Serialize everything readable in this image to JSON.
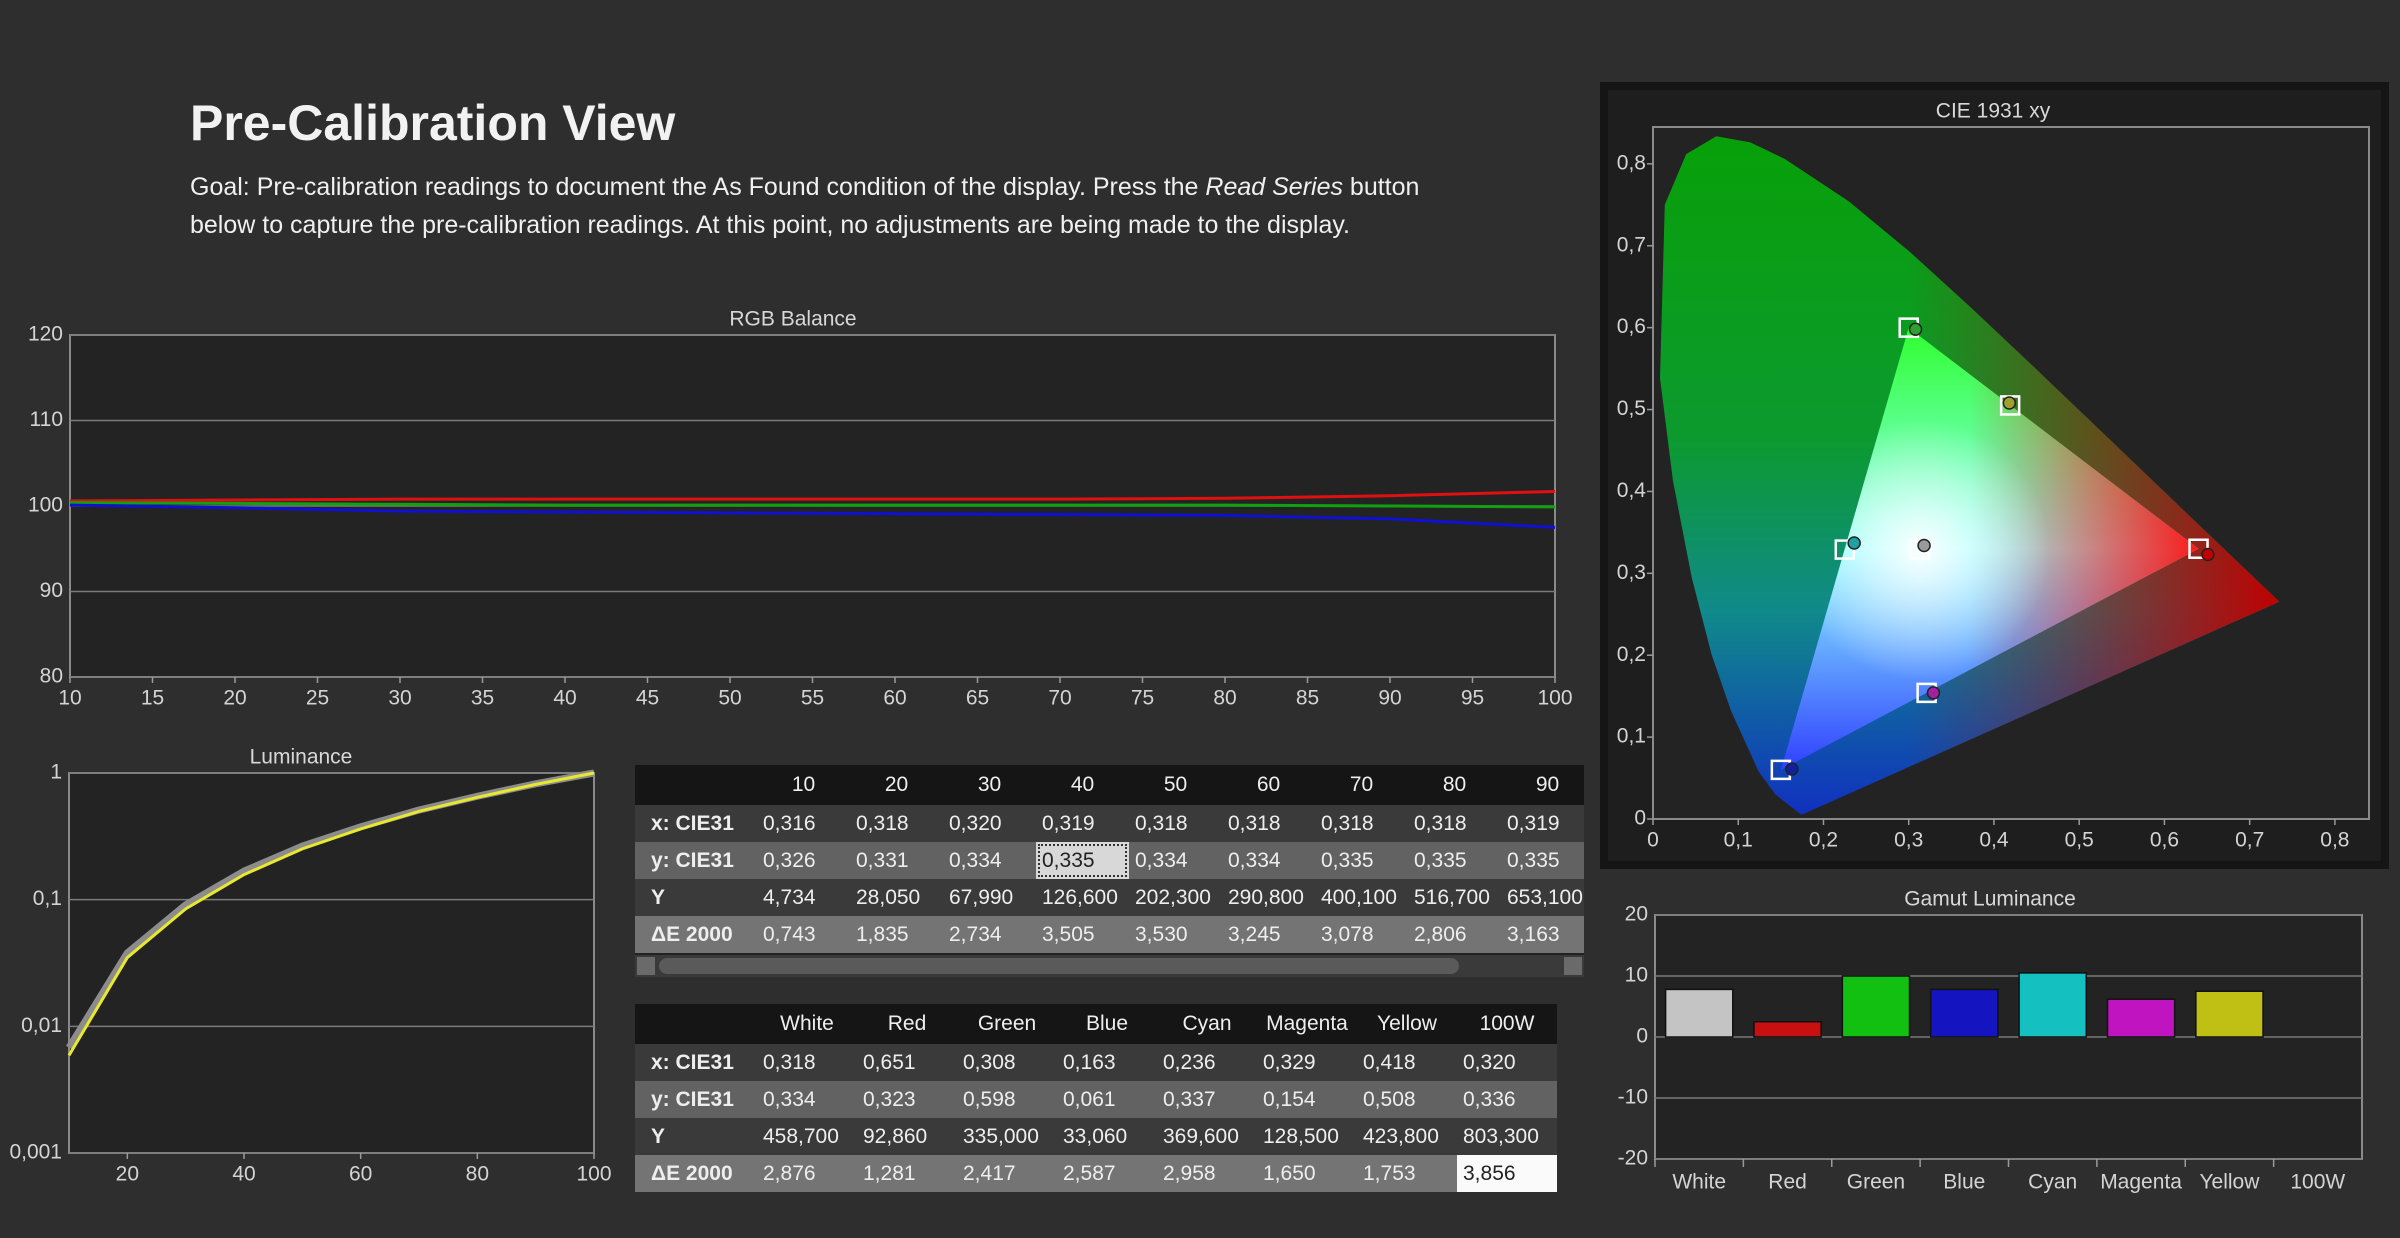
{
  "header": {
    "title": "Pre-Calibration View",
    "description": [
      "Goal: Pre-calibration readings to document the As Found condition of the display. Press the ",
      "Read Series",
      " button",
      "below to capture the pre-calibration readings. At this point, no adjustments are being made to the display."
    ]
  },
  "chart_data": [
    {
      "type": "line",
      "title": "RGB Balance",
      "x": [
        10,
        20,
        30,
        40,
        50,
        60,
        70,
        80,
        90,
        100
      ],
      "series": [
        {
          "color": "#e01010",
          "values": [
            100.6,
            100.7,
            100.8,
            100.8,
            100.8,
            100.8,
            100.8,
            100.9,
            101.2,
            101.7
          ]
        },
        {
          "color": "#10a010",
          "values": [
            100.4,
            100.3,
            100.2,
            100.1,
            100.1,
            100.1,
            100.1,
            100.1,
            100.0,
            99.9
          ]
        },
        {
          "color": "#1010d0",
          "values": [
            100.1,
            99.8,
            99.4,
            99.3,
            99.2,
            99.1,
            99.0,
            98.9,
            98.5,
            97.5
          ]
        }
      ],
      "xlim": [
        10,
        100
      ],
      "xticks": [
        10,
        15,
        20,
        25,
        30,
        35,
        40,
        45,
        50,
        55,
        60,
        65,
        70,
        75,
        80,
        85,
        90,
        95,
        100
      ],
      "ylim": [
        80,
        120
      ],
      "yticks": [
        80,
        90,
        100,
        110,
        120
      ],
      "grid": true
    },
    {
      "type": "line",
      "title": "Luminance",
      "x": [
        10,
        20,
        30,
        40,
        50,
        60,
        70,
        80,
        90,
        100
      ],
      "series": [
        {
          "color": "#8c8c8c",
          "values": [
            0.0068,
            0.038,
            0.091,
            0.168,
            0.265,
            0.376,
            0.51,
            0.655,
            0.822,
            1
          ]
        },
        {
          "color": "#e8e830",
          "values": [
            0.0059,
            0.0349,
            0.0846,
            0.1576,
            0.2518,
            0.362,
            0.498,
            0.643,
            0.813,
            1
          ]
        }
      ],
      "xlim": [
        10,
        100
      ],
      "xticks": [
        20,
        40,
        60,
        80,
        100
      ],
      "ylim": [
        0.001,
        1
      ],
      "yscale": "log",
      "yticks": [
        {
          "value": 0.001,
          "label": "0,001"
        },
        {
          "value": 0.01,
          "label": "0,01"
        },
        {
          "value": 0.1,
          "label": "0,1"
        },
        1
      ],
      "grid": true
    },
    {
      "type": "scatter",
      "title": "CIE 1931 xy",
      "series": [
        {
          "marker": "square",
          "color": "#ffffff",
          "x": [
            0.3127,
            0.64,
            0.3,
            0.15,
            0.225,
            0.321,
            0.419
          ],
          "values": [
            0.329,
            0.33,
            0.6,
            0.06,
            0.329,
            0.154,
            0.505
          ]
        },
        {
          "marker": "circle",
          "colors": [
            "#9a9a9a",
            "#c00000",
            "#30a030",
            "#1020a0",
            "#20a0a0",
            "#a020a0",
            "#a0a030"
          ],
          "x": [
            0.318,
            0.651,
            0.308,
            0.163,
            0.236,
            0.329,
            0.418
          ],
          "values": [
            0.334,
            0.323,
            0.598,
            0.061,
            0.337,
            0.154,
            0.508
          ]
        }
      ],
      "xlim": [
        0,
        0.84
      ],
      "xticks": [
        0,
        {
          "value": 0.1,
          "label": "0,1"
        },
        {
          "value": 0.2,
          "label": "0,2"
        },
        {
          "value": 0.3,
          "label": "0,3"
        },
        {
          "value": 0.4,
          "label": "0,4"
        },
        {
          "value": 0.5,
          "label": "0,5"
        },
        {
          "value": 0.6,
          "label": "0,6"
        },
        {
          "value": 0.7,
          "label": "0,7"
        },
        {
          "value": 0.8,
          "label": "0,8"
        }
      ],
      "ylim": [
        0,
        0.845
      ],
      "yticks": [
        0,
        {
          "value": 0.1,
          "label": "0,1"
        },
        {
          "value": 0.2,
          "label": "0,2"
        },
        {
          "value": 0.3,
          "label": "0,3"
        },
        {
          "value": 0.4,
          "label": "0,4"
        },
        {
          "value": 0.5,
          "label": "0,5"
        },
        {
          "value": 0.6,
          "label": "0,6"
        },
        {
          "value": 0.7,
          "label": "0,7"
        },
        {
          "value": 0.8,
          "label": "0,8"
        }
      ],
      "grid": false
    },
    {
      "type": "bar",
      "title": "Gamut Luminance",
      "categories": [
        "White",
        "Red",
        "Green",
        "Blue",
        "Cyan",
        "Magenta",
        "Yellow",
        "100W"
      ],
      "values": [
        7.8,
        2.5,
        10,
        7.8,
        10.5,
        6.2,
        7.5,
        0
      ],
      "colors": [
        "#c4c4c4",
        "#c81010",
        "#12c012",
        "#1414c0",
        "#14c0c0",
        "#c014c0",
        "#c0c014",
        "#9a9a9a"
      ],
      "ylim": [
        -20,
        20
      ],
      "yticks": [
        -20,
        -10,
        0,
        10,
        20
      ],
      "grid": true
    }
  ],
  "tables": [
    {
      "columns": [
        "10",
        "20",
        "30",
        "40",
        "50",
        "60",
        "70",
        "80",
        "90"
      ],
      "rows": [
        {
          "label": "x: CIE31",
          "cells": [
            "0,316",
            "0,318",
            "0,320",
            "0,319",
            "0,318",
            "0,318",
            "0,318",
            "0,318",
            "0,319"
          ]
        },
        {
          "label": "y: CIE31",
          "cells": [
            "0,326",
            "0,331",
            "0,334",
            "0,335",
            "0,334",
            "0,334",
            "0,335",
            "0,335",
            "0,335"
          ]
        },
        {
          "label": "Y",
          "cells": [
            "4,734",
            "28,050",
            "67,990",
            "126,600",
            "202,300",
            "290,800",
            "400,100",
            "516,700",
            "653,100"
          ]
        },
        {
          "label": "ΔE 2000",
          "cells": [
            "0,743",
            "1,835",
            "2,734",
            "3,505",
            "3,530",
            "3,245",
            "3,078",
            "2,806",
            "3,163"
          ]
        }
      ],
      "selected": [
        1,
        3
      ]
    },
    {
      "columns": [
        "White",
        "Red",
        "Green",
        "Blue",
        "Cyan",
        "Magenta",
        "Yellow",
        "100W"
      ],
      "rows": [
        {
          "label": "x: CIE31",
          "cells": [
            "0,318",
            "0,651",
            "0,308",
            "0,163",
            "0,236",
            "0,329",
            "0,418",
            "0,320"
          ]
        },
        {
          "label": "y: CIE31",
          "cells": [
            "0,334",
            "0,323",
            "0,598",
            "0,061",
            "0,337",
            "0,154",
            "0,508",
            "0,336"
          ]
        },
        {
          "label": "Y",
          "cells": [
            "458,700",
            "92,860",
            "335,000",
            "33,060",
            "369,600",
            "128,500",
            "423,800",
            "803,300"
          ]
        },
        {
          "label": "ΔE 2000",
          "cells": [
            "2,876",
            "1,281",
            "2,417",
            "2,587",
            "2,958",
            "1,650",
            "1,753",
            "3,856"
          ]
        }
      ],
      "selected": [
        3,
        7
      ]
    }
  ]
}
